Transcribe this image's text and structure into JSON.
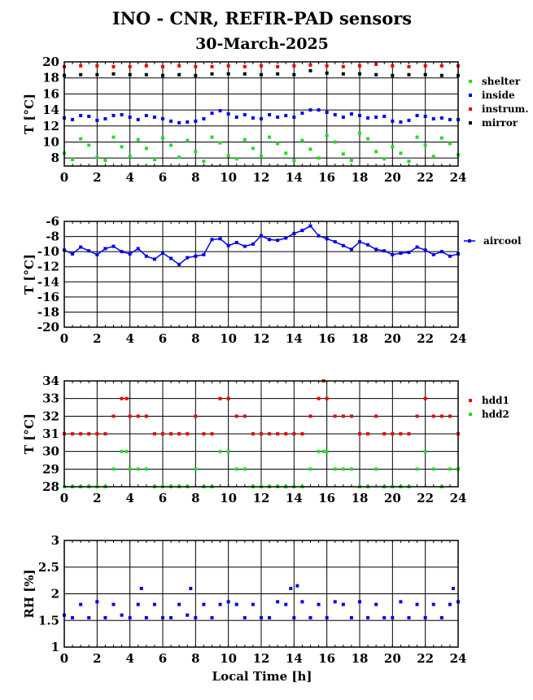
{
  "title": "INO - CNR, REFIR-PAD sensors",
  "subtitle": "30-March-2025",
  "xlabel": "Local Time [h]",
  "chart_data": [
    {
      "type": "scatter",
      "ylabel": "T [°C]",
      "xlim": [
        0,
        24
      ],
      "ylim": [
        7,
        20
      ],
      "xticks": [
        "0",
        "2",
        "4",
        "6",
        "8",
        "10",
        "12",
        "14",
        "16",
        "18",
        "20",
        "22",
        "24"
      ],
      "yticks": [
        "8",
        "10",
        "12",
        "14",
        "16",
        "18",
        "20"
      ],
      "grid": true,
      "legend": "right",
      "series": [
        {
          "name": "shelter",
          "color": "#22dd22",
          "x": [
            0,
            0.5,
            1,
            1.5,
            2,
            2.5,
            3,
            3.5,
            4,
            4.5,
            5,
            5.5,
            6,
            6.5,
            7,
            7.5,
            8,
            8.5,
            9,
            9.5,
            10,
            10.5,
            11,
            11.5,
            12,
            12.5,
            13,
            13.5,
            14,
            14.5,
            15,
            15.5,
            16,
            16.5,
            17,
            17.5,
            18,
            18.5,
            19,
            19.5,
            20,
            20.5,
            21,
            21.5,
            22,
            22.5,
            23,
            23.5,
            24
          ],
          "y": [
            8.6,
            7.8,
            10.4,
            9.6,
            8.1,
            7.7,
            10.6,
            9.4,
            8.2,
            10.3,
            9.2,
            7.8,
            10.5,
            9.6,
            8.1,
            10.2,
            8.8,
            7.6,
            10.6,
            9.9,
            8.3,
            7.9,
            10.3,
            9.2,
            8.2,
            10.6,
            9.8,
            8.6,
            7.7,
            10.2,
            9.1,
            8.0,
            10.8,
            10.0,
            8.5,
            7.7,
            11.1,
            10.4,
            8.8,
            7.9,
            9.4,
            8.6,
            7.6,
            10.6,
            9.6,
            8.2,
            10.5,
            9.8,
            8.4
          ]
        },
        {
          "name": "inside",
          "color": "#0000ee",
          "x": [
            0,
            0.5,
            1,
            1.5,
            2,
            2.5,
            3,
            3.5,
            4,
            4.5,
            5,
            5.5,
            6,
            6.5,
            7,
            7.5,
            8,
            8.5,
            9,
            9.5,
            10,
            10.5,
            11,
            11.5,
            12,
            12.5,
            13,
            13.5,
            14,
            14.5,
            15,
            15.5,
            16,
            16.5,
            17,
            17.5,
            18,
            18.5,
            19,
            19.5,
            20,
            20.5,
            21,
            21.5,
            22,
            22.5,
            23,
            23.5,
            24
          ],
          "y": [
            13.0,
            12.8,
            13.3,
            13.2,
            12.7,
            12.9,
            13.3,
            13.4,
            13.1,
            12.8,
            13.3,
            13.1,
            12.9,
            12.6,
            12.4,
            12.5,
            12.6,
            12.9,
            13.6,
            13.9,
            13.5,
            13.1,
            13.4,
            13.0,
            12.9,
            13.4,
            13.1,
            13.3,
            13.1,
            13.6,
            14.0,
            14.0,
            13.7,
            13.4,
            13.1,
            13.5,
            13.3,
            13.0,
            13.1,
            13.2,
            12.6,
            12.5,
            12.7,
            13.3,
            13.2,
            12.9,
            13.0,
            12.8,
            12.8
          ]
        },
        {
          "name": "instrum.",
          "color": "#ee0000",
          "x": [
            0,
            1,
            2,
            3,
            4,
            5,
            6,
            7,
            8,
            9,
            10,
            11,
            12,
            13,
            14,
            15,
            16,
            17,
            18,
            19,
            20,
            21,
            22,
            23,
            24
          ],
          "y": [
            19.4,
            19.5,
            19.5,
            19.4,
            19.4,
            19.5,
            19.4,
            19.5,
            19.4,
            19.4,
            19.5,
            19.4,
            19.5,
            19.4,
            19.5,
            19.6,
            19.5,
            19.4,
            19.5,
            19.7,
            19.5,
            19.4,
            19.5,
            19.5,
            19.5
          ]
        },
        {
          "name": "mirror",
          "color": "#000000",
          "x": [
            0,
            1,
            2,
            3,
            4,
            5,
            6,
            7,
            8,
            9,
            10,
            11,
            12,
            13,
            14,
            15,
            16,
            17,
            18,
            19,
            20,
            21,
            22,
            23,
            24
          ],
          "y": [
            18.3,
            18.4,
            18.4,
            18.5,
            18.4,
            18.4,
            18.3,
            18.4,
            18.3,
            18.5,
            18.5,
            18.5,
            18.4,
            18.5,
            18.4,
            18.9,
            18.6,
            18.5,
            18.5,
            18.4,
            18.3,
            18.4,
            18.4,
            18.3,
            18.3
          ]
        }
      ]
    },
    {
      "type": "line",
      "ylabel": "T [°C]",
      "xlim": [
        0,
        24
      ],
      "ylim": [
        -20,
        -6
      ],
      "xticks": [
        "0",
        "2",
        "4",
        "6",
        "8",
        "10",
        "12",
        "14",
        "16",
        "18",
        "20",
        "22",
        "24"
      ],
      "yticks": [
        "-6",
        "-8",
        "-10",
        "-12",
        "-14",
        "-16",
        "-18",
        "-20"
      ],
      "grid": true,
      "legend": "right",
      "series": [
        {
          "name": "aircool",
          "color": "#0000ee",
          "x": [
            0,
            0.5,
            1,
            1.5,
            2,
            2.5,
            3,
            3.5,
            4,
            4.5,
            5,
            5.5,
            6,
            6.5,
            7,
            7.5,
            8,
            8.5,
            9,
            9.5,
            10,
            10.5,
            11,
            11.5,
            12,
            12.5,
            13,
            13.5,
            14,
            14.5,
            15,
            15.5,
            16,
            16.5,
            17,
            17.5,
            18,
            18.5,
            19,
            19.5,
            20,
            20.5,
            21,
            21.5,
            22,
            22.5,
            23,
            23.5,
            24
          ],
          "y": [
            -9.8,
            -10.3,
            -9.4,
            -9.9,
            -10.4,
            -9.6,
            -9.3,
            -10.0,
            -10.3,
            -9.6,
            -10.6,
            -11.0,
            -10.2,
            -10.9,
            -11.7,
            -10.8,
            -10.6,
            -10.4,
            -8.4,
            -8.3,
            -9.2,
            -8.8,
            -9.3,
            -9.0,
            -7.9,
            -8.4,
            -8.5,
            -8.2,
            -7.6,
            -7.2,
            -6.6,
            -7.9,
            -8.3,
            -8.7,
            -9.2,
            -9.7,
            -8.7,
            -9.1,
            -9.7,
            -9.9,
            -10.4,
            -10.2,
            -10.1,
            -9.4,
            -9.8,
            -10.4,
            -10.0,
            -10.6,
            -10.3
          ]
        }
      ]
    },
    {
      "type": "scatter",
      "ylabel": "T [°C]",
      "xlim": [
        0,
        24
      ],
      "ylim": [
        28,
        34
      ],
      "xticks": [
        "0",
        "2",
        "4",
        "6",
        "8",
        "10",
        "12",
        "14",
        "16",
        "18",
        "20",
        "22",
        "24"
      ],
      "yticks": [
        "28",
        "29",
        "30",
        "31",
        "32",
        "33",
        "34"
      ],
      "grid": true,
      "legend": "right",
      "series": [
        {
          "name": "hdd1",
          "color": "#ee0000",
          "x": [
            0,
            0.5,
            1,
            1.5,
            2,
            2.5,
            3,
            3.5,
            3.8,
            4,
            4.5,
            5,
            5.5,
            6,
            6.5,
            7,
            7.5,
            8,
            8.5,
            9,
            9.5,
            10,
            10.5,
            11,
            11.5,
            12,
            12.5,
            13,
            13.5,
            14,
            14.5,
            15,
            15.5,
            15.8,
            16,
            16.5,
            17,
            17.5,
            18,
            18.5,
            19,
            19.5,
            20,
            20.5,
            21,
            21.5,
            22,
            22.5,
            23,
            23.5,
            24
          ],
          "y": [
            31,
            31,
            31,
            31,
            31,
            31,
            32,
            33,
            33,
            32,
            32,
            32,
            31,
            31,
            31,
            31,
            31,
            32,
            31,
            31,
            33,
            33,
            32,
            32,
            31,
            31,
            31,
            31,
            31,
            31,
            31,
            32,
            33,
            34,
            33,
            32,
            32,
            32,
            31,
            31,
            32,
            31,
            31,
            31,
            31,
            32,
            33,
            32,
            32,
            32,
            31
          ]
        },
        {
          "name": "hdd2",
          "color": "#22dd22",
          "x": [
            0,
            0.5,
            1,
            1.5,
            2,
            2.5,
            3,
            3.5,
            3.8,
            4,
            4.5,
            5,
            5.5,
            6,
            6.5,
            7,
            7.5,
            8,
            8.5,
            9,
            9.5,
            10,
            10.5,
            11,
            11.5,
            12,
            12.5,
            13,
            13.5,
            14,
            14.5,
            15,
            15.5,
            15.8,
            16,
            16.5,
            17,
            17.5,
            18,
            18.5,
            19,
            19.5,
            20,
            20.5,
            21,
            21.5,
            22,
            22.5,
            23,
            23.5,
            24
          ],
          "y": [
            28,
            28,
            28,
            28,
            28,
            28,
            29,
            30,
            30,
            29,
            29,
            29,
            28,
            28,
            28,
            28,
            28,
            29,
            28,
            28,
            30,
            30,
            29,
            29,
            28,
            28,
            28,
            28,
            28,
            28,
            28,
            29,
            30,
            30,
            30,
            29,
            29,
            29,
            28,
            28,
            29,
            28,
            28,
            28,
            28,
            29,
            30,
            29,
            28,
            29,
            29
          ]
        }
      ]
    },
    {
      "type": "scatter",
      "ylabel": "RH [%]",
      "xlim": [
        0,
        24
      ],
      "ylim": [
        1,
        3
      ],
      "xticks": [
        "0",
        "2",
        "4",
        "6",
        "8",
        "10",
        "12",
        "14",
        "16",
        "18",
        "20",
        "22",
        "24"
      ],
      "yticks": [
        "1",
        "1.5",
        "2",
        "2.5",
        "3"
      ],
      "grid": true,
      "series": [
        {
          "name": "",
          "color": "#0000ee",
          "x": [
            0,
            0.5,
            1,
            1.5,
            2,
            2.5,
            3,
            3.5,
            4,
            4.5,
            4.7,
            5,
            5.5,
            6,
            6.5,
            7,
            7.5,
            7.7,
            8,
            8.5,
            9,
            9.5,
            10,
            10.5,
            11,
            11.5,
            12,
            12.5,
            13,
            13.5,
            13.8,
            14,
            14.2,
            14.5,
            15,
            15.5,
            16,
            16.5,
            17,
            17.5,
            18,
            18.5,
            19,
            19.5,
            20,
            20.5,
            21,
            21.5,
            22,
            22.5,
            23,
            23.5,
            23.7,
            24
          ],
          "y": [
            1.6,
            1.55,
            1.8,
            1.55,
            1.85,
            1.55,
            1.8,
            1.6,
            1.55,
            1.8,
            2.1,
            1.55,
            1.8,
            1.55,
            1.55,
            1.8,
            1.6,
            2.1,
            1.55,
            1.8,
            1.55,
            1.8,
            1.85,
            1.8,
            1.55,
            1.8,
            1.55,
            1.55,
            1.85,
            1.8,
            2.1,
            1.55,
            2.15,
            1.85,
            1.55,
            1.8,
            1.55,
            1.85,
            1.8,
            1.55,
            1.85,
            1.55,
            1.8,
            1.55,
            1.55,
            1.85,
            1.55,
            1.8,
            1.55,
            1.8,
            1.55,
            1.8,
            2.1,
            1.85
          ]
        }
      ]
    }
  ]
}
